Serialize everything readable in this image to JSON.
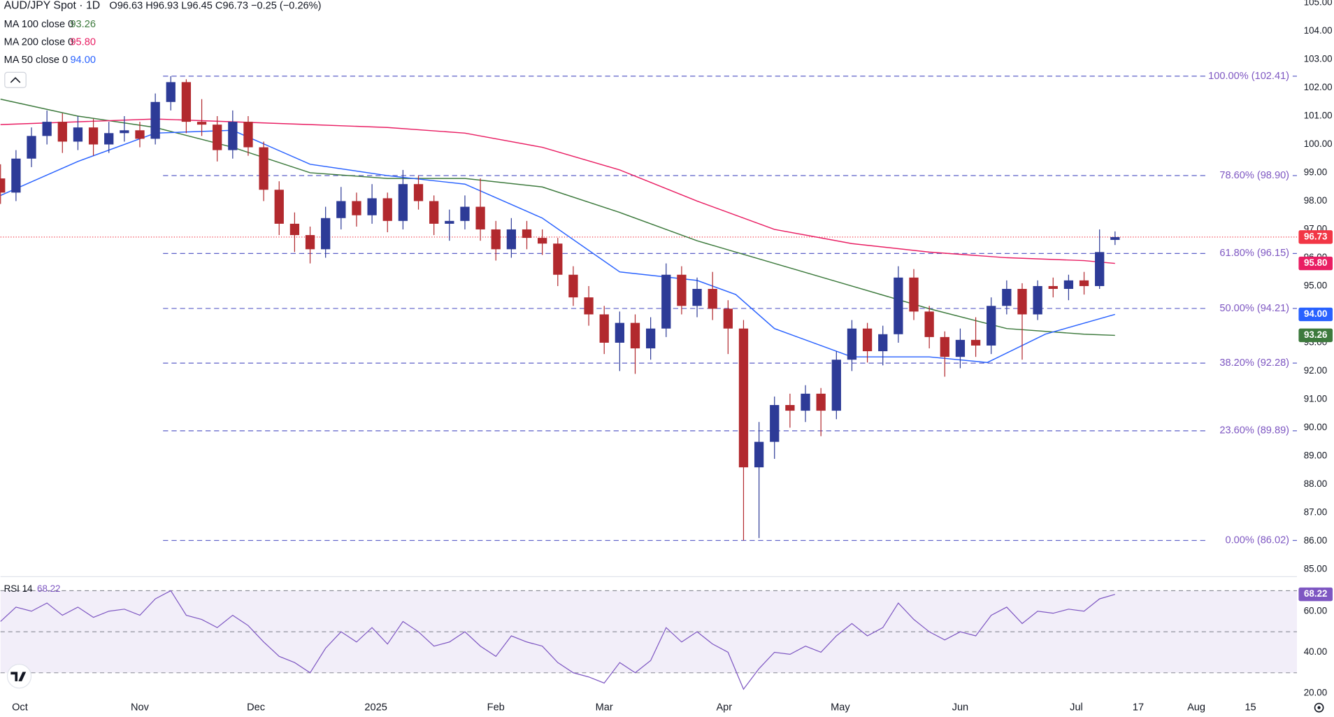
{
  "chart_data": {
    "type": "candlestick",
    "title": "AUD/JPY Spot · 1D",
    "ohlc_text": "O96.63 H96.93 L96.45 C96.73 −0.25 (−0.26%)",
    "up_color": "#2d3b97",
    "down_color": "#b2292e",
    "xlim": [
      -5,
      330
    ],
    "xticks": [
      {
        "value": 0,
        "label": "Oct"
      },
      {
        "value": 31,
        "label": "Nov"
      },
      {
        "value": 61,
        "label": "Dec"
      },
      {
        "value": 92,
        "label": "2025"
      },
      {
        "value": 123,
        "label": "Feb"
      },
      {
        "value": 151,
        "label": "Mar"
      },
      {
        "value": 182,
        "label": "Apr"
      },
      {
        "value": 212,
        "label": "May"
      },
      {
        "value": 243,
        "label": "Jun"
      },
      {
        "value": 273,
        "label": "Jul"
      },
      {
        "value": 289,
        "label": "17"
      },
      {
        "value": 304,
        "label": "Aug"
      },
      {
        "value": 318,
        "label": "15"
      }
    ],
    "ylim": [
      84.8,
      105.1
    ],
    "yticks": [
      {
        "value": 85,
        "label": "85.00"
      },
      {
        "value": 86,
        "label": "86.00"
      },
      {
        "value": 87,
        "label": "87.00"
      },
      {
        "value": 88,
        "label": "88.00"
      },
      {
        "value": 89,
        "label": "89.00"
      },
      {
        "value": 90,
        "label": "90.00"
      },
      {
        "value": 91,
        "label": "91.00"
      },
      {
        "value": 92,
        "label": "92.00"
      },
      {
        "value": 93,
        "label": "93.00"
      },
      {
        "value": 94,
        "label": "94.00"
      },
      {
        "value": 95,
        "label": "95.00"
      },
      {
        "value": 96,
        "label": "96.00"
      },
      {
        "value": 97,
        "label": "97.00"
      },
      {
        "value": 98,
        "label": "98.00"
      },
      {
        "value": 99,
        "label": "99.00"
      },
      {
        "value": 100,
        "label": "100.00"
      },
      {
        "value": 101,
        "label": "101.00"
      },
      {
        "value": 102,
        "label": "102.00"
      },
      {
        "value": 103,
        "label": "103.00"
      },
      {
        "value": 104,
        "label": "104.00"
      },
      {
        "value": 105,
        "label": "105.00"
      }
    ],
    "x": [
      -5,
      -1,
      3,
      7,
      11,
      15,
      19,
      23,
      27,
      31,
      35,
      39,
      43,
      47,
      51,
      55,
      59,
      63,
      67,
      71,
      75,
      79,
      83,
      87,
      91,
      95,
      99,
      103,
      107,
      111,
      115,
      119,
      123,
      127,
      131,
      135,
      139,
      143,
      147,
      151,
      155,
      159,
      163,
      167,
      171,
      175,
      179,
      183,
      187,
      191,
      195,
      199,
      203,
      207,
      211,
      215,
      219,
      223,
      227,
      231,
      235,
      239,
      243,
      247,
      251,
      255,
      259,
      263,
      267,
      271,
      275,
      279,
      283
    ],
    "candles": [
      [
        98.8,
        99.3,
        97.9,
        98.3
      ],
      [
        98.3,
        99.8,
        98.0,
        99.5
      ],
      [
        99.5,
        100.6,
        99.2,
        100.3
      ],
      [
        100.3,
        101.2,
        100.0,
        100.8
      ],
      [
        100.8,
        101.1,
        99.7,
        100.1
      ],
      [
        100.1,
        101.0,
        99.8,
        100.6
      ],
      [
        100.6,
        100.9,
        99.6,
        100.0
      ],
      [
        100.0,
        100.8,
        99.7,
        100.4
      ],
      [
        100.4,
        101.0,
        100.1,
        100.5
      ],
      [
        100.5,
        100.8,
        99.9,
        100.2
      ],
      [
        100.2,
        101.8,
        100.0,
        101.5
      ],
      [
        101.5,
        102.41,
        101.2,
        102.2
      ],
      [
        102.2,
        102.3,
        100.4,
        100.8
      ],
      [
        100.8,
        101.6,
        100.3,
        100.7
      ],
      [
        100.7,
        101.0,
        99.4,
        99.8
      ],
      [
        99.8,
        101.2,
        99.5,
        100.8
      ],
      [
        100.8,
        101.0,
        99.6,
        99.9
      ],
      [
        99.9,
        100.1,
        98.0,
        98.4
      ],
      [
        98.4,
        98.7,
        96.8,
        97.2
      ],
      [
        97.2,
        97.6,
        96.2,
        96.8
      ],
      [
        96.8,
        97.1,
        95.8,
        96.3
      ],
      [
        96.3,
        97.8,
        96.0,
        97.4
      ],
      [
        97.4,
        98.5,
        97.0,
        98.0
      ],
      [
        98.0,
        98.3,
        97.1,
        97.5
      ],
      [
        97.5,
        98.6,
        97.2,
        98.1
      ],
      [
        98.1,
        98.3,
        96.9,
        97.3
      ],
      [
        97.3,
        99.1,
        97.0,
        98.6
      ],
      [
        98.6,
        98.9,
        97.7,
        98.0
      ],
      [
        98.0,
        98.2,
        96.8,
        97.2
      ],
      [
        97.2,
        97.7,
        96.6,
        97.3
      ],
      [
        97.3,
        98.2,
        97.0,
        97.8
      ],
      [
        97.8,
        98.8,
        96.6,
        97.0
      ],
      [
        97.0,
        97.3,
        95.9,
        96.3
      ],
      [
        96.3,
        97.4,
        96.0,
        97.0
      ],
      [
        97.0,
        97.3,
        96.3,
        96.7
      ],
      [
        96.7,
        97.0,
        96.1,
        96.5
      ],
      [
        96.5,
        96.7,
        95.0,
        95.4
      ],
      [
        95.4,
        95.7,
        94.3,
        94.6
      ],
      [
        94.6,
        95.0,
        93.6,
        94.0
      ],
      [
        94.0,
        94.3,
        92.6,
        93.0
      ],
      [
        93.0,
        94.1,
        92.0,
        93.7
      ],
      [
        93.7,
        94.0,
        91.9,
        92.8
      ],
      [
        92.8,
        93.9,
        92.4,
        93.5
      ],
      [
        93.5,
        95.8,
        93.2,
        95.4
      ],
      [
        95.4,
        95.7,
        94.0,
        94.3
      ],
      [
        94.3,
        95.3,
        93.9,
        94.9
      ],
      [
        94.9,
        95.5,
        93.8,
        94.2
      ],
      [
        94.2,
        94.5,
        92.6,
        93.5
      ],
      [
        93.5,
        93.8,
        86.02,
        88.6
      ],
      [
        88.6,
        90.2,
        86.1,
        89.5
      ],
      [
        89.5,
        91.1,
        88.9,
        90.8
      ],
      [
        90.8,
        91.2,
        90.0,
        90.6
      ],
      [
        90.6,
        91.5,
        90.2,
        91.2
      ],
      [
        91.2,
        91.4,
        89.7,
        90.6
      ],
      [
        90.6,
        92.7,
        90.3,
        92.4
      ],
      [
        92.4,
        93.8,
        92.0,
        93.5
      ],
      [
        93.5,
        93.7,
        92.3,
        92.7
      ],
      [
        92.7,
        93.6,
        92.2,
        93.3
      ],
      [
        93.3,
        95.7,
        93.0,
        95.3
      ],
      [
        95.3,
        95.6,
        93.8,
        94.1
      ],
      [
        94.1,
        94.3,
        92.8,
        93.2
      ],
      [
        93.2,
        93.4,
        91.8,
        92.5
      ],
      [
        92.5,
        93.5,
        92.1,
        93.1
      ],
      [
        93.1,
        93.9,
        92.5,
        92.9
      ],
      [
        92.9,
        94.6,
        92.6,
        94.3
      ],
      [
        94.3,
        95.2,
        94.0,
        94.9
      ],
      [
        94.9,
        95.1,
        92.4,
        94.0
      ],
      [
        94.0,
        95.2,
        93.8,
        95.0
      ],
      [
        95.0,
        95.3,
        94.6,
        94.9
      ],
      [
        94.9,
        95.4,
        94.5,
        95.2
      ],
      [
        95.2,
        95.5,
        94.7,
        95.0
      ],
      [
        95.0,
        97.0,
        94.9,
        96.2
      ],
      [
        96.63,
        96.93,
        96.45,
        96.73
      ]
    ],
    "series": [
      {
        "name": "MA 100 close 0",
        "legend_value": "93.26",
        "color": "#3d7a3d",
        "x": [
          -5,
          15,
          35,
          55,
          75,
          95,
          115,
          135,
          155,
          175,
          195,
          215,
          235,
          255,
          275,
          283
        ],
        "values": [
          101.6,
          101.0,
          100.6,
          99.9,
          99.0,
          98.8,
          98.8,
          98.5,
          97.6,
          96.6,
          95.8,
          95.0,
          94.2,
          93.5,
          93.3,
          93.26
        ]
      },
      {
        "name": "MA 200 close 0",
        "legend_value": "95.80",
        "color": "#e91e63",
        "x": [
          -5,
          15,
          35,
          55,
          75,
          95,
          115,
          135,
          155,
          175,
          195,
          215,
          235,
          255,
          275,
          283
        ],
        "values": [
          100.7,
          100.8,
          100.9,
          100.8,
          100.7,
          100.6,
          100.4,
          99.9,
          99.1,
          98.0,
          97.0,
          96.5,
          96.2,
          96.0,
          95.9,
          95.8
        ]
      },
      {
        "name": "MA 50 close 0",
        "legend_value": "94.00",
        "color": "#2962ff",
        "x": [
          -5,
          15,
          35,
          55,
          75,
          95,
          115,
          135,
          155,
          175,
          185,
          195,
          215,
          235,
          250,
          265,
          283
        ],
        "values": [
          98.2,
          99.4,
          100.4,
          100.5,
          99.3,
          98.9,
          98.6,
          97.4,
          95.5,
          95.2,
          94.7,
          93.5,
          92.5,
          92.5,
          92.3,
          93.3,
          94.0
        ]
      }
    ],
    "last_price": {
      "label": "96.73",
      "value": 96.73,
      "color": "#f23645"
    },
    "fib_start_x": 37,
    "fib_levels": [
      {
        "label": "100.00% (102.41)",
        "value": 102.41
      },
      {
        "label": "78.60% (98.90)",
        "value": 98.9
      },
      {
        "label": "61.80% (96.15)",
        "value": 96.15
      },
      {
        "label": "50.00% (94.21)",
        "value": 94.21
      },
      {
        "label": "38.20% (92.28)",
        "value": 92.28
      },
      {
        "label": "23.60% (89.89)",
        "value": 89.89
      },
      {
        "label": "0.00% (86.02)",
        "value": 86.02
      }
    ],
    "rsi": {
      "name": "RSI 14",
      "legend_value": "68.22",
      "color": "#7e57c2",
      "ylim": [
        18,
        76
      ],
      "yticks": [
        {
          "value": 20,
          "label": "20.00"
        },
        {
          "value": 40,
          "label": "40.00"
        },
        {
          "value": 60,
          "label": "60.00"
        }
      ],
      "levels": [
        30,
        50,
        70
      ],
      "values": [
        55,
        62,
        60,
        64,
        58,
        62,
        57,
        60,
        61,
        58,
        66,
        70,
        58,
        56,
        52,
        58,
        53,
        45,
        38,
        35,
        30,
        42,
        50,
        45,
        52,
        44,
        55,
        50,
        43,
        45,
        50,
        43,
        38,
        48,
        45,
        43,
        35,
        30,
        28,
        25,
        35,
        30,
        36,
        52,
        45,
        50,
        44,
        40,
        22,
        32,
        40,
        39,
        43,
        40,
        48,
        54,
        48,
        52,
        64,
        56,
        50,
        46,
        50,
        48,
        58,
        62,
        54,
        60,
        59,
        61,
        60,
        66,
        68.22
      ]
    }
  }
}
